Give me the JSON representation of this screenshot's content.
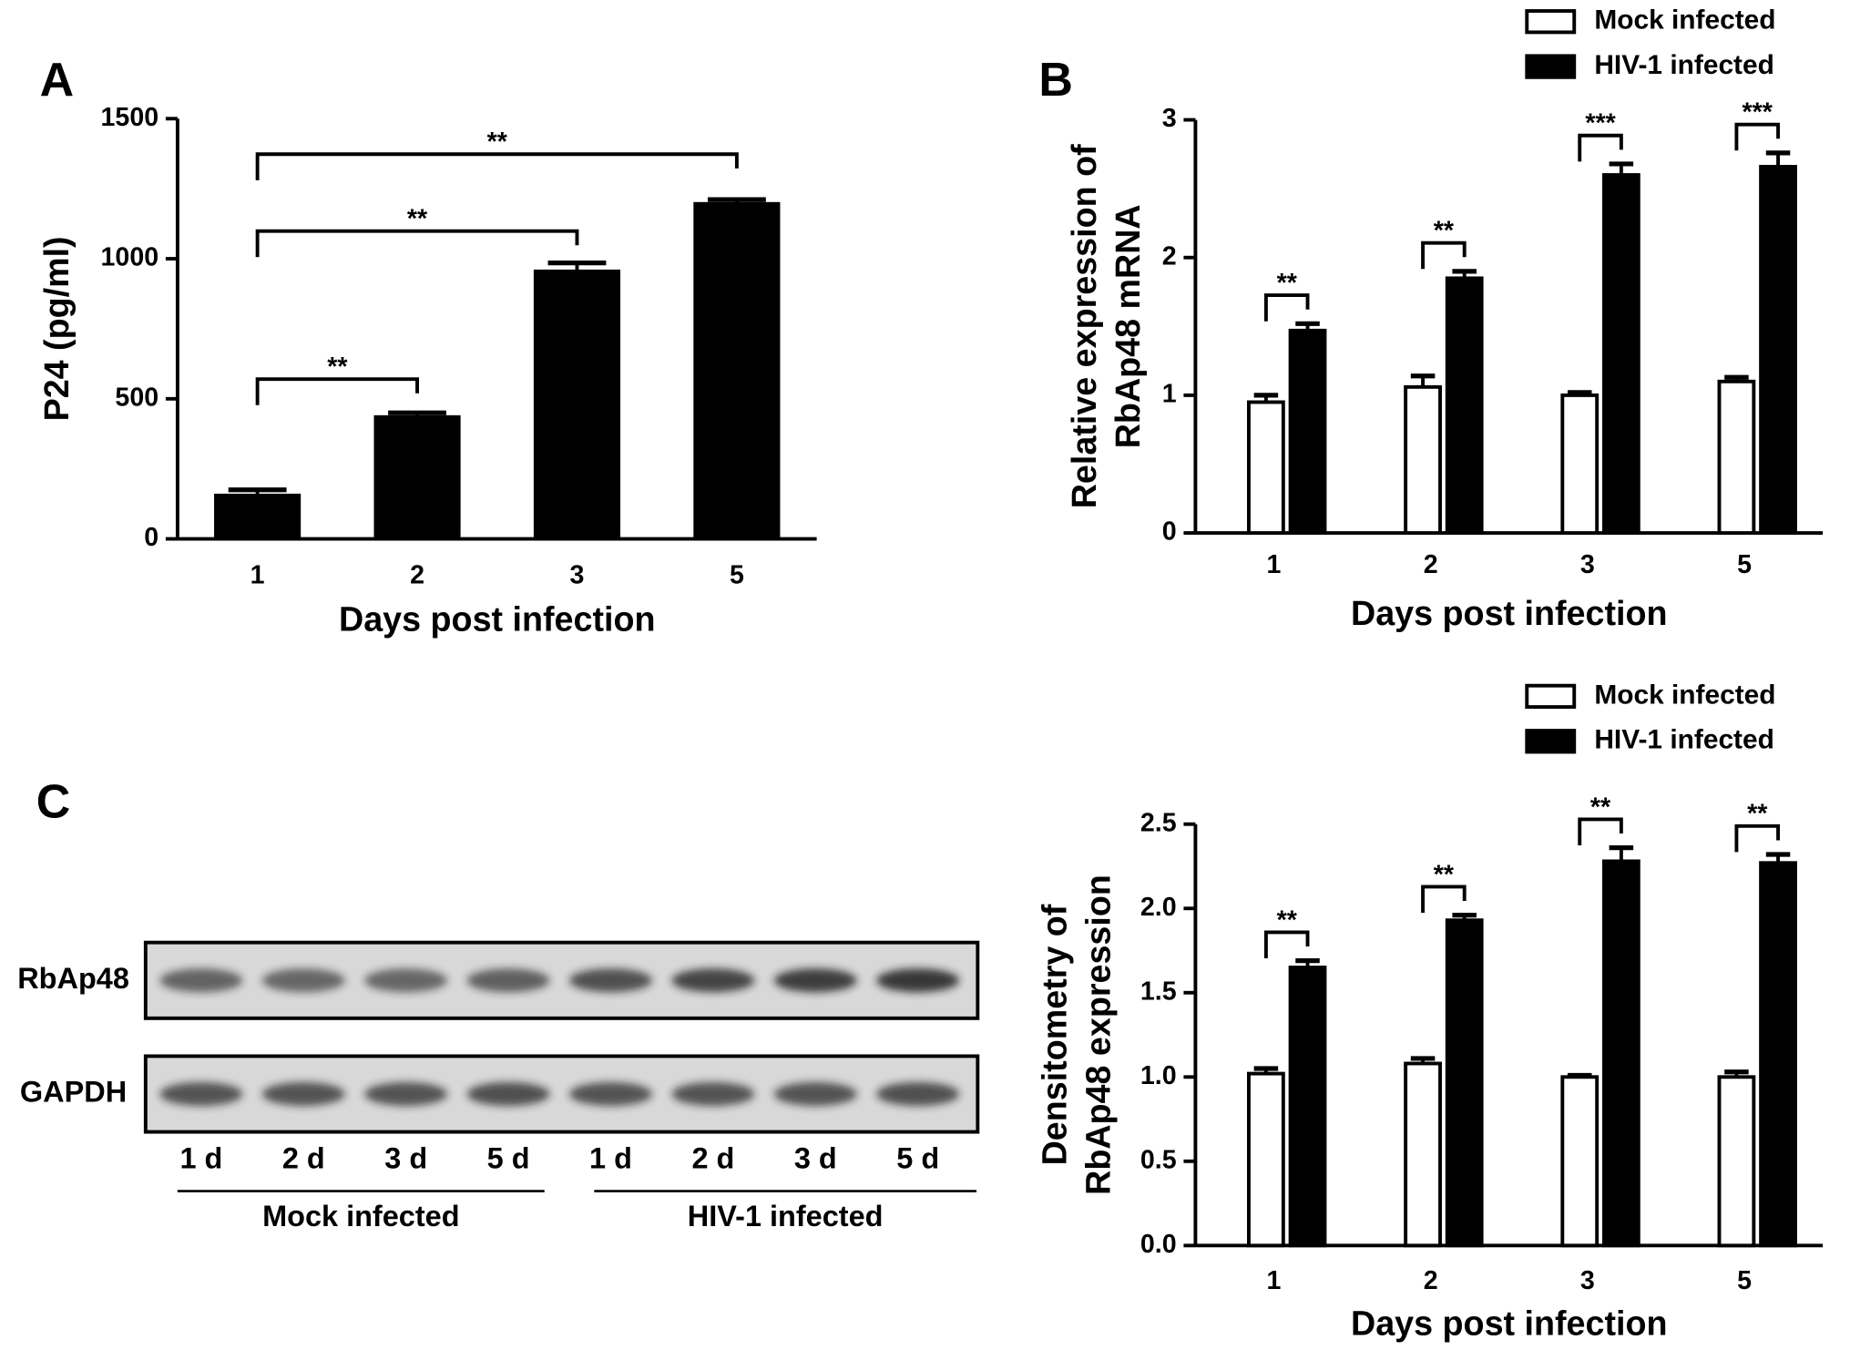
{
  "chart_data": [
    {
      "type": "bar",
      "panel_label": "A",
      "categories": [
        "1",
        "2",
        "3",
        "5"
      ],
      "values": [
        155,
        435,
        955,
        1196
      ],
      "errors": [
        20,
        15,
        30,
        15
      ],
      "color": "#000000",
      "ylim": [
        0,
        1500
      ],
      "yticks": [
        0,
        500,
        1000,
        1500
      ],
      "y_label": [
        "P24 (pg/ml)"
      ],
      "x_label": "Days post infection",
      "annotations": [
        "**",
        "**",
        "**"
      ]
    },
    {
      "type": "bar",
      "panel_label": "B",
      "categories": [
        "1",
        "2",
        "3",
        "5"
      ],
      "series": [
        {
          "name": "Mock infected",
          "color": "#ffffff",
          "values": [
            0.95,
            1.06,
            1.0,
            1.1
          ],
          "errors": [
            0.05,
            0.08,
            0.02,
            0.03
          ]
        },
        {
          "name": "HIV-1 infected",
          "color": "#000000",
          "values": [
            1.47,
            1.85,
            2.6,
            2.66
          ],
          "errors": [
            0.05,
            0.05,
            0.08,
            0.1
          ]
        }
      ],
      "ylim": [
        0,
        3
      ],
      "yticks": [
        0,
        1,
        2,
        3
      ],
      "y_label": [
        "Relative expression of",
        "RbAp48 mRNA"
      ],
      "x_label": "Days post infection",
      "annotations": [
        "**",
        "**",
        "***",
        "***"
      ]
    },
    {
      "type": "bar",
      "categories": [
        "1",
        "2",
        "3",
        "5"
      ],
      "series": [
        {
          "name": "Mock infected",
          "color": "#ffffff",
          "values": [
            1.02,
            1.08,
            1.0,
            1.0
          ],
          "errors": [
            0.03,
            0.03,
            0.01,
            0.03
          ]
        },
        {
          "name": "HIV-1 infected",
          "color": "#000000",
          "values": [
            1.65,
            1.93,
            2.28,
            2.27
          ],
          "errors": [
            0.04,
            0.03,
            0.08,
            0.05
          ]
        }
      ],
      "ylim": [
        0,
        2.5
      ],
      "yticks": [
        {
          "value": 0,
          "label": "0.0"
        },
        {
          "value": 0.5,
          "label": "0.5"
        },
        {
          "value": 1,
          "label": "1.0"
        },
        {
          "value": 1.5,
          "label": "1.5"
        },
        {
          "value": 2,
          "label": "2.0"
        },
        {
          "value": 2.5,
          "label": "2.5"
        }
      ],
      "y_label": [
        "Densitometry of",
        "RbAp48 expression"
      ],
      "x_label": "Days post infection",
      "annotations": [
        "**",
        "**",
        "**",
        "**"
      ]
    }
  ],
  "blot": {
    "panel_label": "C",
    "rows": [
      "RbAp48",
      "GAPDH"
    ],
    "lanes": [
      "1 d",
      "2 d",
      "3 d",
      "5 d",
      "1 d",
      "2 d",
      "3 d",
      "5 d"
    ],
    "groups": [
      "Mock infected",
      "HIV-1 infected"
    ]
  }
}
